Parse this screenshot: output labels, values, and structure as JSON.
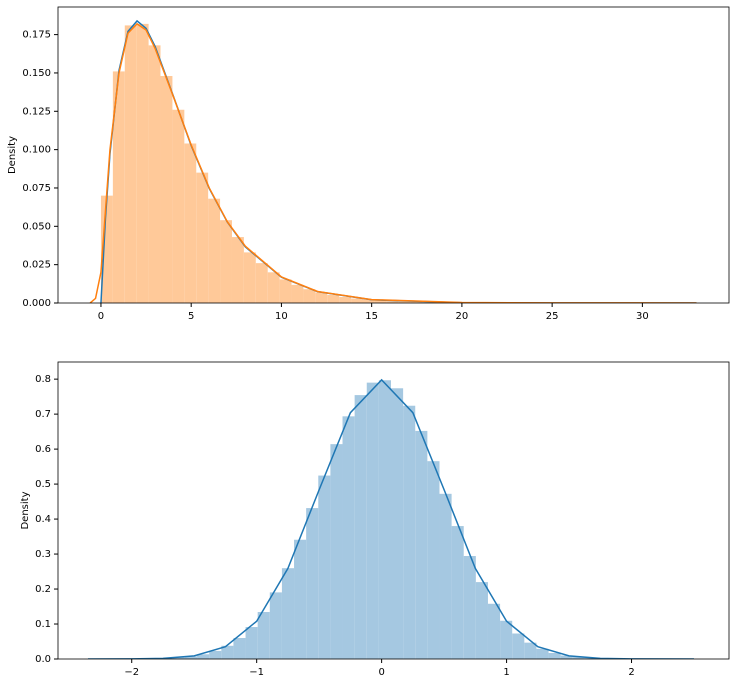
{
  "chart_data": [
    {
      "type": "histogram",
      "ylabel": "Density",
      "color": "#ffc999",
      "bins": [
        0,
        0.66,
        1.32,
        1.98,
        2.64,
        3.3,
        3.96,
        4.62,
        5.28,
        5.94,
        6.6,
        7.26,
        7.92,
        8.58,
        9.24,
        9.9,
        10.56,
        11.22,
        11.88,
        12.54,
        13.2,
        13.86,
        14.52,
        15.18,
        15.84,
        16.5,
        17.16,
        17.82,
        18.48,
        19.14,
        19.8,
        20.46,
        21.12,
        21.78,
        22.44,
        23.1,
        23.76,
        24.42,
        25.08,
        25.74,
        26.4,
        27.06,
        27.72,
        28.38,
        29.04,
        29.7,
        30.36,
        31.02,
        31.68,
        32.34,
        33
      ],
      "values": [
        0.07,
        0.151,
        0.181,
        0.182,
        0.168,
        0.148,
        0.126,
        0.104,
        0.085,
        0.068,
        0.054,
        0.043,
        0.033,
        0.026,
        0.02,
        0.0154,
        0.0118,
        0.009,
        0.0068,
        0.0052,
        0.0039,
        0.0029,
        0.0022,
        0.0017,
        0.0012,
        0.0009,
        0.0007,
        0.0005,
        0.0004,
        0.0003,
        0.0002,
        0.0002,
        0.0001,
        0.0001,
        0.0001,
        0.0001,
        0,
        0,
        0,
        0,
        0,
        0,
        0,
        0,
        0,
        0,
        0,
        0,
        0,
        0
      ],
      "lines": [
        {
          "color": "#1f77b4",
          "x": [
            0,
            0.25,
            0.5,
            1,
            1.5,
            2,
            2.5,
            3,
            4,
            5,
            6,
            7,
            8,
            10,
            12,
            15,
            20,
            25,
            33
          ],
          "values": [
            0,
            0.0552,
            0.0974,
            0.1516,
            0.1771,
            0.1839,
            0.1791,
            0.1673,
            0.1353,
            0.1026,
            0.0747,
            0.0528,
            0.0366,
            0.0168,
            0.0074,
            0.0021,
            0.0002,
            0,
            0
          ]
        },
        {
          "color": "#ff7f0e",
          "x": [
            -0.6,
            -0.3,
            0,
            0.25,
            0.5,
            1,
            1.5,
            2,
            2.5,
            3,
            4,
            5,
            6,
            7,
            8,
            10,
            12,
            15,
            20,
            25,
            33
          ],
          "values": [
            0,
            0.003,
            0.02,
            0.06,
            0.1,
            0.15,
            0.176,
            0.182,
            0.178,
            0.166,
            0.135,
            0.103,
            0.075,
            0.053,
            0.037,
            0.017,
            0.0075,
            0.0022,
            0.0003,
            0.0001,
            0
          ]
        }
      ],
      "xlim": [
        -2.38,
        34.8
      ],
      "ylim": [
        0,
        0.193
      ],
      "xticks": [
        0,
        5,
        10,
        15,
        20,
        25,
        30
      ],
      "yticks": [
        {
          "value": 0,
          "label": "0.000"
        },
        {
          "value": 0.025,
          "label": "0.025"
        },
        {
          "value": 0.05,
          "label": "0.050"
        },
        {
          "value": 0.075,
          "label": "0.075"
        },
        {
          "value": 0.1,
          "label": "0.100"
        },
        {
          "value": 0.125,
          "label": "0.125"
        },
        {
          "value": 0.15,
          "label": "0.150"
        },
        {
          "value": 0.175,
          "label": "0.175"
        }
      ]
    },
    {
      "type": "histogram",
      "ylabel": "Density",
      "color": "#a5c8e1",
      "bins": [
        -2.35,
        -2.253,
        -2.156,
        -2.059,
        -1.962,
        -1.865,
        -1.768,
        -1.671,
        -1.574,
        -1.477,
        -1.38,
        -1.283,
        -1.186,
        -1.089,
        -0.992,
        -0.895,
        -0.798,
        -0.701,
        -0.604,
        -0.507,
        -0.41,
        -0.313,
        -0.216,
        -0.119,
        -0.022,
        0.075,
        0.172,
        0.269,
        0.366,
        0.463,
        0.56,
        0.657,
        0.754,
        0.851,
        0.948,
        1.045,
        1.142,
        1.239,
        1.336,
        1.433,
        1.53,
        1.627,
        1.724,
        1.821,
        1.918,
        2.015,
        2.112,
        2.209,
        2.306,
        2.403,
        2.5
      ],
      "values": [
        0,
        0,
        0.0001,
        0.0002,
        0.0005,
        0.0011,
        0.0022,
        0.0042,
        0.0076,
        0.0135,
        0.0231,
        0.0378,
        0.0601,
        0.0914,
        0.1343,
        0.1904,
        0.2596,
        0.3409,
        0.4314,
        0.5244,
        0.6142,
        0.6937,
        0.7544,
        0.79,
        0.7968,
        0.7739,
        0.724,
        0.652,
        0.5655,
        0.4722,
        0.38,
        0.2944,
        0.2198,
        0.1579,
        0.1093,
        0.0729,
        0.0467,
        0.029,
        0.0172,
        0.0099,
        0.0055,
        0.0029,
        0.0015,
        0.0007,
        0.0003,
        0.0002,
        0.0001,
        0,
        0,
        0
      ],
      "lines": [
        {
          "color": "#1f77b4",
          "x": [
            -2.35,
            -2,
            -1.75,
            -1.5,
            -1.25,
            -1,
            -0.75,
            -0.5,
            -0.25,
            0,
            0.25,
            0.5,
            0.75,
            1,
            1.25,
            1.5,
            1.75,
            2,
            2.5
          ],
          "values": [
            0,
            0.0003,
            0.0017,
            0.0089,
            0.0351,
            0.108,
            0.259,
            0.4839,
            0.7041,
            0.7979,
            0.7041,
            0.4839,
            0.259,
            0.108,
            0.0351,
            0.0089,
            0.0017,
            0.0003,
            0
          ]
        }
      ],
      "xlim": [
        -2.59,
        2.78
      ],
      "ylim": [
        0,
        0.849
      ],
      "xticks": [
        {
          "value": -2,
          "label": "−2"
        },
        {
          "value": -1,
          "label": "−1"
        },
        0,
        1,
        2
      ],
      "yticks": [
        {
          "value": 0,
          "label": "0.0"
        },
        0.1,
        0.2,
        0.3,
        0.4,
        0.5,
        0.6,
        0.7,
        0.8
      ]
    }
  ]
}
